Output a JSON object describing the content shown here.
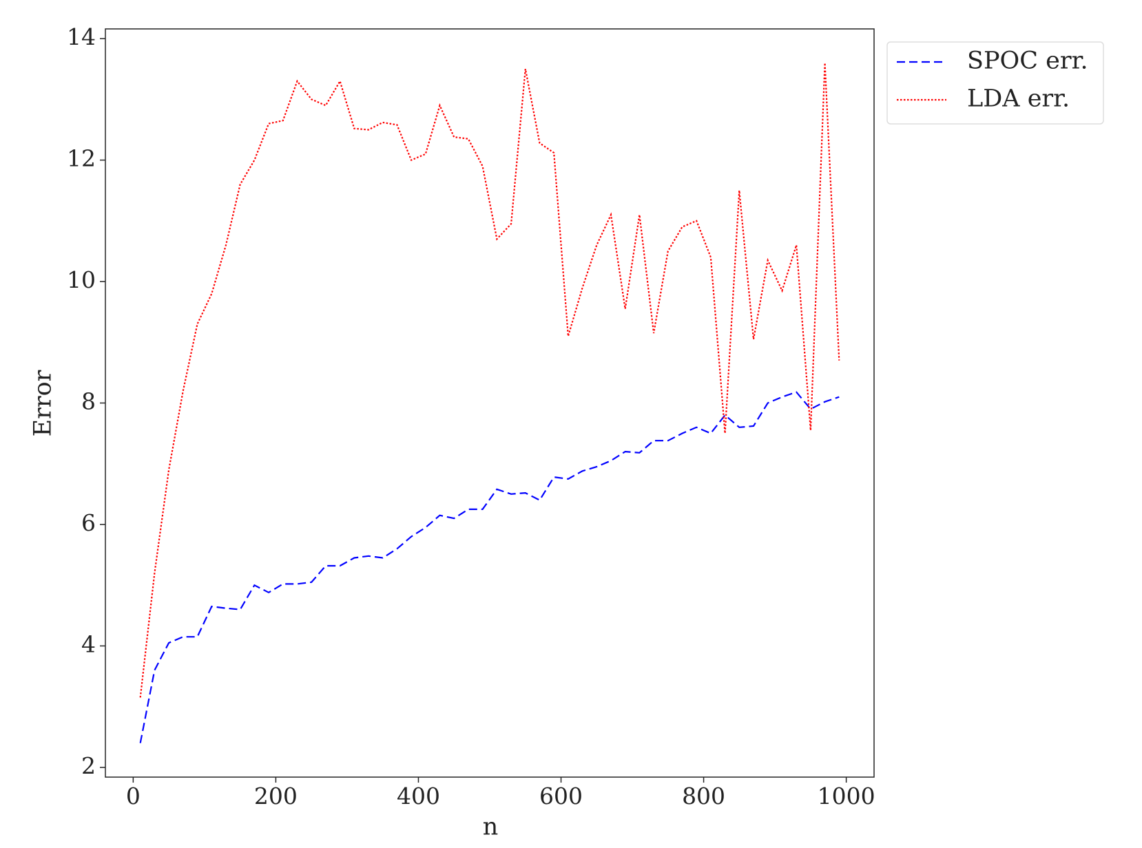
{
  "chart_data": {
    "type": "line",
    "x_label": "n",
    "y_label": "Error",
    "x": [
      10,
      30,
      50,
      70,
      90,
      110,
      130,
      150,
      170,
      190,
      210,
      230,
      250,
      270,
      290,
      310,
      330,
      350,
      370,
      390,
      410,
      430,
      450,
      470,
      490,
      510,
      530,
      550,
      570,
      590,
      610,
      630,
      650,
      670,
      690,
      710,
      730,
      750,
      770,
      790,
      810,
      830,
      850,
      870,
      890,
      910,
      930,
      950,
      970,
      990
    ],
    "series": [
      {
        "name": "SPOC err.",
        "color": "#0000ff",
        "style": "dashed",
        "values": [
          2.4,
          3.6,
          4.05,
          4.15,
          4.15,
          4.65,
          4.62,
          4.6,
          5.0,
          4.88,
          5.02,
          5.02,
          5.05,
          5.32,
          5.32,
          5.45,
          5.48,
          5.45,
          5.6,
          5.8,
          5.95,
          6.15,
          6.1,
          6.25,
          6.25,
          6.58,
          6.5,
          6.52,
          6.4,
          6.78,
          6.75,
          6.88,
          6.95,
          7.05,
          7.2,
          7.18,
          7.38,
          7.38,
          7.5,
          7.6,
          7.5,
          7.8,
          7.6,
          7.62,
          8.0,
          8.1,
          8.18,
          7.9,
          8.02,
          8.1
        ]
      },
      {
        "name": "LDA err.",
        "color": "#ff0000",
        "style": "dotted",
        "values": [
          3.15,
          5.2,
          6.9,
          8.2,
          9.3,
          9.8,
          10.6,
          11.6,
          12.0,
          12.6,
          12.65,
          13.3,
          13.0,
          12.9,
          13.3,
          12.52,
          12.5,
          12.62,
          12.58,
          12.0,
          12.1,
          12.9,
          12.38,
          12.35,
          11.9,
          10.7,
          10.95,
          13.5,
          12.28,
          12.12,
          9.1,
          9.9,
          10.6,
          11.1,
          9.55,
          11.1,
          9.15,
          10.5,
          10.9,
          11.0,
          10.4,
          7.5,
          11.5,
          9.05,
          10.35,
          9.85,
          10.6,
          7.55,
          13.6,
          8.7
        ]
      }
    ],
    "xlim": [
      -39,
      1039
    ],
    "ylim": [
      1.84,
      14.16
    ],
    "xticks": [
      0,
      200,
      400,
      600,
      800,
      1000
    ],
    "yticks": [
      2,
      4,
      6,
      8,
      10,
      12,
      14
    ],
    "legend": "outside-upper-right"
  }
}
